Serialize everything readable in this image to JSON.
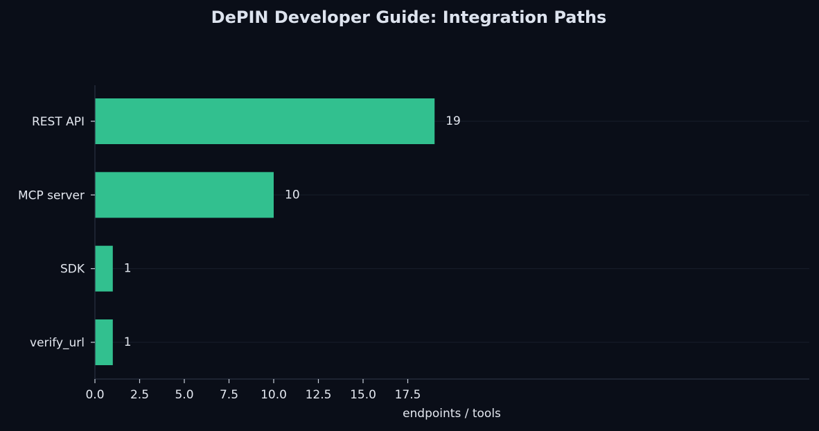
{
  "chart_data": {
    "type": "bar",
    "orientation": "horizontal",
    "title": "DePIN Developer Guide: Integration Paths",
    "xlabel": "endpoints / tools",
    "ylabel": "",
    "categories": [
      "REST API",
      "MCP server",
      "SDK",
      "verify_url"
    ],
    "values": [
      19,
      10,
      1,
      1
    ],
    "value_labels": [
      "19",
      "10",
      "1",
      "1"
    ],
    "xlim": [
      0,
      20
    ],
    "xticks": [
      0.0,
      2.5,
      5.0,
      7.5,
      10.0,
      12.5,
      15.0,
      17.5
    ],
    "xtick_labels": [
      "0.0",
      "2.5",
      "5.0",
      "7.5",
      "10.0",
      "12.5",
      "15.0",
      "17.5"
    ],
    "grid": "horizontal faint lines at category centers",
    "legend": "none",
    "colors": {
      "background": "#0a0e18",
      "bar": "#32c08f",
      "text": "#e4e8f0",
      "title": "#dde3ee"
    }
  }
}
